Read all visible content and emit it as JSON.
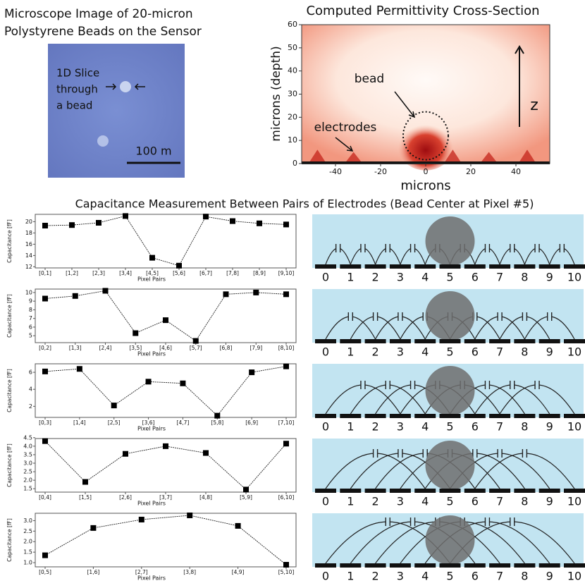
{
  "microscope": {
    "title": [
      "Microscope Image of 20-micron",
      "Polystyrene Beads on the Sensor"
    ],
    "annotation": [
      "1D Slice",
      "through",
      "a bead"
    ],
    "scale_label": "100 m"
  },
  "section_title": "Capacitance Measurement Between Pairs of Electrodes (Bead Center at Pixel #5)",
  "diagram": {
    "electrode_labels": [
      "0",
      "1",
      "2",
      "3",
      "4",
      "5",
      "6",
      "7",
      "8",
      "9",
      "10"
    ]
  },
  "chart_data": [
    {
      "type": "field",
      "title": "Computed Permittivity Cross-Section",
      "xlabel": "microns",
      "ylabel": "microns (depth)",
      "xlim": [
        -55,
        55
      ],
      "xticks": [
        -40,
        -20,
        0,
        20,
        40
      ],
      "ylim": [
        0,
        60
      ],
      "yticks": [
        0,
        10,
        20,
        30,
        40,
        50,
        60
      ],
      "annotations": [
        "bead",
        "electrodes",
        "z"
      ]
    },
    {
      "type": "line",
      "xlabel": "Pixel Pairs",
      "ylabel": "Capacitance [fF]",
      "categories": [
        "[0,1]",
        "[1,2]",
        "[2,3]",
        "[3,4]",
        "[4,5]",
        "[5,6]",
        "[6,7]",
        "[7,8]",
        "[8,9]",
        "[9,10]"
      ],
      "values": [
        19.3,
        19.4,
        19.8,
        21,
        13.6,
        12.2,
        20.9,
        20.1,
        19.7,
        19.5
      ],
      "ylim": [
        11.8,
        21.3
      ],
      "yticks": [
        12,
        14,
        16,
        18,
        20
      ]
    },
    {
      "type": "line",
      "xlabel": "Pixel Pairs",
      "ylabel": "Capacitance [fF]",
      "categories": [
        "[0,2]",
        "[1,3]",
        "[2,4]",
        "[3,5]",
        "[4,6]",
        "[5,7]",
        "[6,8]",
        "[7,9]",
        "[8,10]"
      ],
      "values": [
        9.3,
        9.6,
        10.2,
        5.3,
        6.8,
        4.4,
        9.8,
        10,
        9.8
      ],
      "ylim": [
        4.2,
        10.4
      ],
      "yticks": [
        5,
        6,
        7,
        8,
        9,
        10
      ]
    },
    {
      "type": "line",
      "xlabel": "Pixel Pairs",
      "ylabel": "Capacitance [fF]",
      "categories": [
        "[0,3]",
        "[1,4]",
        "[2,5]",
        "[3,6]",
        "[4,7]",
        "[5,8]",
        "[6,9]",
        "[7,10]"
      ],
      "values": [
        6.1,
        6.4,
        2.1,
        4.9,
        4.7,
        0.9,
        6.0,
        6.7
      ],
      "ylim": [
        0.7,
        7
      ],
      "yticks": [
        2,
        4,
        6
      ]
    },
    {
      "type": "line",
      "xlabel": "Pixel Pairs",
      "ylabel": "Capacitance [fF]",
      "categories": [
        "[0,4]",
        "[1,5]",
        "[2,6]",
        "[3,7]",
        "[4,8]",
        "[5,9]",
        "[6,10]"
      ],
      "values": [
        4.3,
        1.9,
        3.55,
        4.0,
        3.6,
        1.45,
        4.15
      ],
      "ylim": [
        1.3,
        4.45
      ],
      "yticks": [
        1.5,
        {
          "value": 2,
          "label": "2.0"
        },
        2.5,
        {
          "value": 3,
          "label": "3.0"
        },
        3.5,
        {
          "value": 4,
          "label": "4.0"
        },
        4.5
      ]
    },
    {
      "type": "line",
      "xlabel": "Pixel Pairs",
      "ylabel": "Capacitance [fF]",
      "categories": [
        "[0,5]",
        "[1,6]",
        "[2,7]",
        "[3,8]",
        "[4,9]",
        "[5,10]"
      ],
      "values": [
        1.35,
        2.65,
        3.05,
        3.25,
        2.75,
        0.9
      ],
      "ylim": [
        0.8,
        3.35
      ],
      "yticks": [
        {
          "value": 1,
          "label": "1.0"
        },
        1.5,
        {
          "value": 2,
          "label": "2.0"
        },
        2.5,
        {
          "value": 3,
          "label": "3.0"
        }
      ]
    }
  ]
}
